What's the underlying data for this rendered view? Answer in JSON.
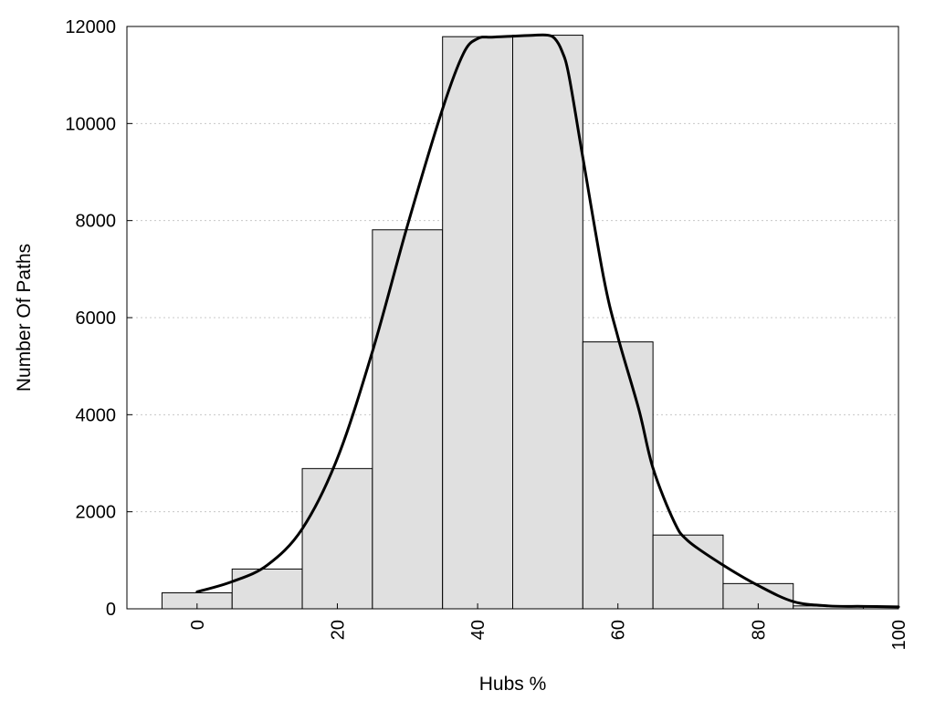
{
  "chart_data": {
    "type": "bar",
    "title": "",
    "xlabel": "Hubs %",
    "ylabel": "Number Of Paths",
    "xlim": [
      -10,
      100
    ],
    "ylim": [
      0,
      12000
    ],
    "x_ticks": [
      "0",
      "20",
      "40",
      "60",
      "80",
      "100"
    ],
    "y_ticks": [
      "0",
      "2000",
      "4000",
      "6000",
      "8000",
      "10000",
      "12000"
    ],
    "grid": "horizontal dotted",
    "bin_width": 10,
    "bins": [
      {
        "center": 0,
        "value": 330
      },
      {
        "center": 10,
        "value": 820
      },
      {
        "center": 20,
        "value": 2890
      },
      {
        "center": 30,
        "value": 7810
      },
      {
        "center": 40,
        "value": 11790
      },
      {
        "center": 50,
        "value": 11820
      },
      {
        "center": 60,
        "value": 5500
      },
      {
        "center": 70,
        "value": 1520
      },
      {
        "center": 80,
        "value": 520
      },
      {
        "center": 90,
        "value": 60
      }
    ],
    "curve": {
      "type": "smoothed line",
      "x": [
        0,
        5,
        10,
        15,
        20,
        25,
        30,
        35,
        38,
        40,
        42,
        45,
        48,
        50,
        51,
        52,
        53,
        55,
        58,
        60,
        63,
        65,
        68,
        70,
        75,
        80,
        85,
        90,
        95,
        100
      ],
      "y": [
        350,
        560,
        900,
        1650,
        3100,
        5300,
        7900,
        10300,
        11450,
        11750,
        11780,
        11800,
        11820,
        11820,
        11750,
        11500,
        11000,
        9300,
        6800,
        5600,
        4100,
        2900,
        1800,
        1400,
        900,
        480,
        150,
        60,
        50,
        40
      ]
    }
  }
}
